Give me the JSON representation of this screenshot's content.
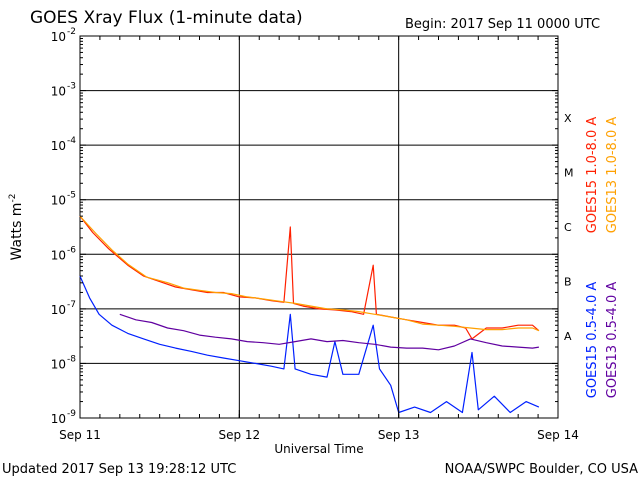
{
  "chart_data": {
    "type": "line",
    "title": "GOES Xray Flux (1-minute data)",
    "begin_label": "Begin:  2017 Sep 11 0000 UTC",
    "xlabel": "Universal Time",
    "ylabel": "Watts m",
    "ylabel_exponent": "-2",
    "y_scale": "log",
    "ylim": [
      1e-09,
      0.01
    ],
    "xlim_days": [
      0,
      3
    ],
    "x_ticks": [
      {
        "day": 0,
        "label": "Sep 11"
      },
      {
        "day": 1,
        "label": "Sep 12"
      },
      {
        "day": 2,
        "label": "Sep 13"
      },
      {
        "day": 3,
        "label": "Sep 14"
      }
    ],
    "y_ticks": [
      {
        "exp": -9,
        "label": "10",
        "sup": "-9"
      },
      {
        "exp": -8,
        "label": "10",
        "sup": "-8"
      },
      {
        "exp": -7,
        "label": "10",
        "sup": "-7"
      },
      {
        "exp": -6,
        "label": "10",
        "sup": "-6"
      },
      {
        "exp": -5,
        "label": "10",
        "sup": "-5"
      },
      {
        "exp": -4,
        "label": "10",
        "sup": "-4"
      },
      {
        "exp": -3,
        "label": "10",
        "sup": "-3"
      },
      {
        "exp": -2,
        "label": "10",
        "sup": "-2"
      }
    ],
    "flare_classes": [
      {
        "label": "X",
        "exp_low": -4
      },
      {
        "label": "M",
        "exp_low": -5
      },
      {
        "label": "C",
        "exp_low": -6
      },
      {
        "label": "B",
        "exp_low": -7
      },
      {
        "label": "A",
        "exp_low": -8
      }
    ],
    "grid": "horizontal at each decade above 1e-9; vertical at each day",
    "series": [
      {
        "name": "GOES15 1.0-8.0 A",
        "color": "#ff2000",
        "points": [
          [
            0,
            -5.3
          ],
          [
            0.08,
            -5.6
          ],
          [
            0.18,
            -5.9
          ],
          [
            0.3,
            -6.2
          ],
          [
            0.4,
            -6.4
          ],
          [
            0.5,
            -6.5
          ],
          [
            0.6,
            -6.6
          ],
          [
            0.7,
            -6.65
          ],
          [
            0.8,
            -6.7
          ],
          [
            0.9,
            -6.7
          ],
          [
            1.0,
            -6.78
          ],
          [
            1.1,
            -6.8
          ],
          [
            1.2,
            -6.85
          ],
          [
            1.28,
            -6.88
          ],
          [
            1.32,
            -5.5
          ],
          [
            1.34,
            -6.9
          ],
          [
            1.4,
            -6.95
          ],
          [
            1.5,
            -7.0
          ],
          [
            1.6,
            -7.02
          ],
          [
            1.7,
            -7.05
          ],
          [
            1.78,
            -7.1
          ],
          [
            1.84,
            -6.2
          ],
          [
            1.86,
            -7.1
          ],
          [
            1.95,
            -7.15
          ],
          [
            2.05,
            -7.2
          ],
          [
            2.15,
            -7.25
          ],
          [
            2.25,
            -7.3
          ],
          [
            2.35,
            -7.3
          ],
          [
            2.42,
            -7.35
          ],
          [
            2.46,
            -7.55
          ],
          [
            2.55,
            -7.35
          ],
          [
            2.65,
            -7.35
          ],
          [
            2.75,
            -7.3
          ],
          [
            2.84,
            -7.3
          ],
          [
            2.88,
            -7.4
          ]
        ]
      },
      {
        "name": "GOES13 1.0-8.0 A",
        "color": "#ffa000",
        "points": [
          [
            0,
            -5.3
          ],
          [
            0.1,
            -5.62
          ],
          [
            0.2,
            -5.92
          ],
          [
            0.3,
            -6.18
          ],
          [
            0.42,
            -6.42
          ],
          [
            0.55,
            -6.52
          ],
          [
            0.65,
            -6.62
          ],
          [
            0.75,
            -6.66
          ],
          [
            0.85,
            -6.7
          ],
          [
            0.95,
            -6.72
          ],
          [
            1.05,
            -6.78
          ],
          [
            1.15,
            -6.82
          ],
          [
            1.25,
            -6.86
          ],
          [
            1.35,
            -6.9
          ],
          [
            1.45,
            -6.95
          ],
          [
            1.55,
            -7.0
          ],
          [
            1.65,
            -7.02
          ],
          [
            1.75,
            -7.05
          ],
          [
            1.85,
            -7.1
          ],
          [
            1.95,
            -7.15
          ],
          [
            2.05,
            -7.2
          ],
          [
            2.15,
            -7.28
          ],
          [
            2.25,
            -7.3
          ],
          [
            2.35,
            -7.32
          ],
          [
            2.45,
            -7.35
          ],
          [
            2.55,
            -7.38
          ],
          [
            2.65,
            -7.38
          ],
          [
            2.75,
            -7.35
          ],
          [
            2.84,
            -7.35
          ],
          [
            2.88,
            -7.4
          ]
        ]
      },
      {
        "name": "GOES15 0.5-4.0 A",
        "color": "#0020ff",
        "points": [
          [
            0,
            -6.4
          ],
          [
            0.06,
            -6.8
          ],
          [
            0.12,
            -7.1
          ],
          [
            0.2,
            -7.3
          ],
          [
            0.3,
            -7.45
          ],
          [
            0.4,
            -7.55
          ],
          [
            0.5,
            -7.65
          ],
          [
            0.6,
            -7.72
          ],
          [
            0.7,
            -7.78
          ],
          [
            0.8,
            -7.85
          ],
          [
            0.9,
            -7.9
          ],
          [
            1.0,
            -7.95
          ],
          [
            1.1,
            -8.0
          ],
          [
            1.2,
            -8.05
          ],
          [
            1.28,
            -8.1
          ],
          [
            1.32,
            -7.1
          ],
          [
            1.35,
            -8.1
          ],
          [
            1.45,
            -8.2
          ],
          [
            1.55,
            -8.25
          ],
          [
            1.6,
            -7.6
          ],
          [
            1.65,
            -8.2
          ],
          [
            1.75,
            -8.2
          ],
          [
            1.84,
            -7.3
          ],
          [
            1.88,
            -8.1
          ],
          [
            1.95,
            -8.4
          ],
          [
            2.0,
            -8.9
          ],
          [
            2.1,
            -8.8
          ],
          [
            2.2,
            -8.9
          ],
          [
            2.3,
            -8.7
          ],
          [
            2.4,
            -8.9
          ],
          [
            2.46,
            -7.8
          ],
          [
            2.5,
            -8.85
          ],
          [
            2.6,
            -8.6
          ],
          [
            2.7,
            -8.9
          ],
          [
            2.8,
            -8.7
          ],
          [
            2.88,
            -8.8
          ]
        ]
      },
      {
        "name": "GOES13 0.5-4.0 A",
        "color": "#6000a0",
        "points": [
          [
            0.25,
            -7.1
          ],
          [
            0.35,
            -7.2
          ],
          [
            0.45,
            -7.25
          ],
          [
            0.55,
            -7.35
          ],
          [
            0.65,
            -7.4
          ],
          [
            0.75,
            -7.48
          ],
          [
            0.85,
            -7.52
          ],
          [
            0.95,
            -7.55
          ],
          [
            1.05,
            -7.6
          ],
          [
            1.15,
            -7.62
          ],
          [
            1.25,
            -7.65
          ],
          [
            1.35,
            -7.6
          ],
          [
            1.45,
            -7.55
          ],
          [
            1.55,
            -7.6
          ],
          [
            1.65,
            -7.58
          ],
          [
            1.75,
            -7.62
          ],
          [
            1.85,
            -7.65
          ],
          [
            1.95,
            -7.7
          ],
          [
            2.05,
            -7.72
          ],
          [
            2.15,
            -7.72
          ],
          [
            2.25,
            -7.75
          ],
          [
            2.35,
            -7.68
          ],
          [
            2.45,
            -7.55
          ],
          [
            2.55,
            -7.62
          ],
          [
            2.65,
            -7.68
          ],
          [
            2.75,
            -7.7
          ],
          [
            2.84,
            -7.72
          ],
          [
            2.88,
            -7.7
          ]
        ]
      }
    ]
  },
  "footer": {
    "updated": "Updated 2017 Sep 13 19:28:12 UTC",
    "source": "NOAA/SWPC Boulder, CO USA"
  }
}
